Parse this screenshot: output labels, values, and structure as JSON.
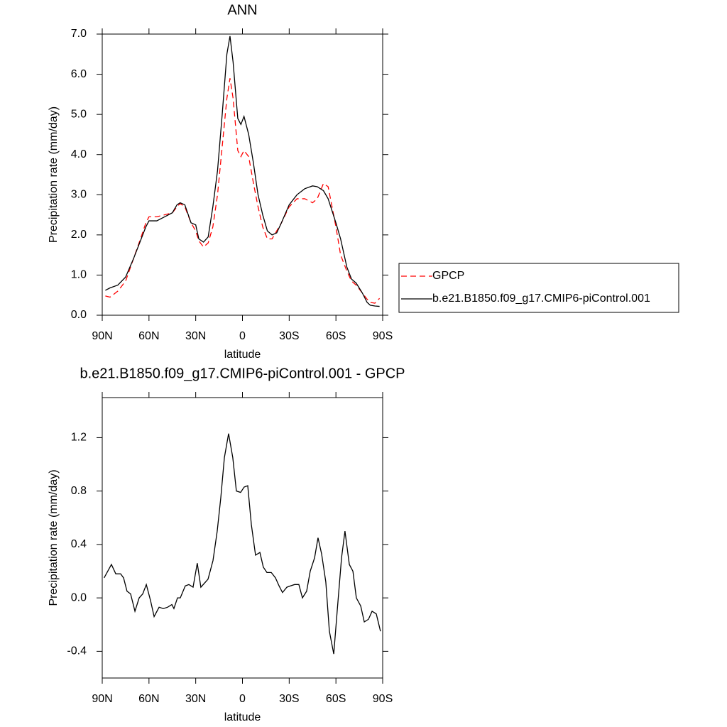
{
  "chart_data": [
    {
      "type": "line",
      "title": "ANN",
      "xlabel": "latitude",
      "ylabel": "Precipitation rate (mm/day)",
      "x": [
        88,
        85,
        80,
        75,
        70,
        65,
        62,
        60,
        55,
        50,
        45,
        42,
        40,
        37,
        33,
        30,
        28,
        25,
        22,
        19,
        16,
        13,
        10,
        8,
        6,
        3,
        1,
        -1,
        -4,
        -7,
        -10,
        -13,
        -16,
        -19,
        -22,
        -25,
        -30,
        -35,
        -40,
        -45,
        -48,
        -52,
        -55,
        -60,
        -63,
        -67,
        -70,
        -73,
        -77,
        -80,
        -82,
        -85,
        -88
      ],
      "series": [
        {
          "name": "GPCP",
          "color": "#ff0000",
          "dashed": true,
          "values": [
            0.48,
            0.45,
            0.6,
            0.85,
            1.4,
            1.95,
            2.3,
            2.45,
            2.45,
            2.5,
            2.55,
            2.7,
            2.78,
            2.7,
            2.3,
            2.1,
            1.85,
            1.7,
            1.8,
            2.2,
            3.0,
            4.2,
            5.4,
            5.9,
            5.4,
            4.1,
            3.95,
            4.1,
            3.95,
            3.3,
            2.7,
            2.2,
            1.9,
            1.9,
            2.1,
            2.3,
            2.7,
            2.9,
            2.9,
            2.8,
            2.9,
            3.28,
            3.2,
            2.2,
            1.5,
            1.1,
            0.85,
            0.75,
            0.55,
            0.4,
            0.32,
            0.3,
            0.42
          ]
        },
        {
          "name": "b.e21.B1850.f09_g17.CMIP6-piControl.001",
          "color": "#000000",
          "dashed": false,
          "values": [
            0.62,
            0.68,
            0.75,
            0.95,
            1.4,
            1.9,
            2.2,
            2.35,
            2.35,
            2.45,
            2.55,
            2.75,
            2.8,
            2.75,
            2.3,
            2.25,
            1.9,
            1.82,
            1.95,
            2.7,
            3.6,
            5.0,
            6.5,
            6.95,
            6.3,
            4.9,
            4.75,
            4.95,
            4.5,
            3.8,
            3.0,
            2.5,
            2.1,
            2.0,
            2.05,
            2.3,
            2.75,
            3.0,
            3.15,
            3.22,
            3.2,
            3.1,
            2.9,
            2.3,
            1.9,
            1.2,
            0.9,
            0.8,
            0.55,
            0.32,
            0.25,
            0.23,
            0.22
          ]
        }
      ],
      "xlim": [
        90,
        -90
      ],
      "xticks": [
        {
          "value": 90,
          "label": "90N"
        },
        {
          "value": 60,
          "label": "60N"
        },
        {
          "value": 30,
          "label": "30N"
        },
        0,
        {
          "value": -30,
          "label": "30S"
        },
        {
          "value": -60,
          "label": "60S"
        },
        {
          "value": -90,
          "label": "90S"
        }
      ],
      "ylim": [
        0,
        7
      ],
      "yticks": [
        {
          "value": 0,
          "label": "0.0"
        },
        {
          "value": 1,
          "label": "1.0"
        },
        {
          "value": 2,
          "label": "2.0"
        },
        {
          "value": 3,
          "label": "3.0"
        },
        {
          "value": 4,
          "label": "4.0"
        },
        {
          "value": 5,
          "label": "5.0"
        },
        {
          "value": 6,
          "label": "6.0"
        },
        {
          "value": 7,
          "label": "7.0"
        }
      ],
      "legend": "right"
    },
    {
      "type": "line",
      "title": "b.e21.B1850.f09_g17.CMIP6-piControl.001 - GPCP",
      "xlabel": "latitude",
      "ylabel": "Precipitation rate (mm/day)",
      "x": [
        88.8,
        84.1,
        81.3,
        78.2,
        76.3,
        74.1,
        71.8,
        69.0,
        66.3,
        64.0,
        61.7,
        59.0,
        56.7,
        53.5,
        50.8,
        48.1,
        45.3,
        44.0,
        41.7,
        39.9,
        36.7,
        34.4,
        31.7,
        29.0,
        26.7,
        22.1,
        18.9,
        16.2,
        13.9,
        11.6,
        8.9,
        6.2,
        3.9,
        1.2,
        -1.1,
        -3.4,
        -5.7,
        -8.4,
        -11.2,
        -13.4,
        -15.7,
        -18.5,
        -21.2,
        -23.5,
        -25.7,
        -28.5,
        -30.8,
        -33.5,
        -36.2,
        -38.5,
        -41.2,
        -43.5,
        -46.3,
        -48.5,
        -50.8,
        -53.5,
        -55.8,
        -58.6,
        -60.8,
        -63.6,
        -65.8,
        -68.6,
        -70.9,
        -73.1,
        -75.9,
        -78.2,
        -80.9,
        -83.2,
        -85.9,
        -88.6
      ],
      "values": [
        0.15,
        0.25,
        0.18,
        0.18,
        0.15,
        0.05,
        0.03,
        -0.1,
        0.0,
        0.03,
        0.1,
        -0.02,
        -0.14,
        -0.07,
        -0.08,
        -0.07,
        -0.05,
        -0.08,
        0.0,
        0.0,
        0.09,
        0.1,
        0.08,
        0.26,
        0.08,
        0.14,
        0.28,
        0.5,
        0.75,
        1.05,
        1.23,
        1.05,
        0.8,
        0.79,
        0.83,
        0.84,
        0.55,
        0.32,
        0.34,
        0.23,
        0.19,
        0.19,
        0.15,
        0.09,
        0.04,
        0.08,
        0.09,
        0.1,
        0.1,
        0.0,
        0.05,
        0.2,
        0.3,
        0.45,
        0.33,
        0.12,
        -0.25,
        -0.42,
        -0.1,
        0.3,
        0.5,
        0.25,
        0.2,
        0.0,
        -0.06,
        -0.18,
        -0.16,
        -0.1,
        -0.12,
        -0.25
      ],
      "color": "#000000",
      "xlim": [
        90,
        -90
      ],
      "xticks": [
        {
          "value": 90,
          "label": "90N"
        },
        {
          "value": 60,
          "label": "60N"
        },
        {
          "value": 30,
          "label": "30N"
        },
        0,
        {
          "value": -30,
          "label": "30S"
        },
        {
          "value": -60,
          "label": "60S"
        },
        {
          "value": -90,
          "label": "90S"
        }
      ],
      "ylim": [
        -0.6,
        1.5
      ],
      "yticks": [
        -0.4,
        {
          "value": 0,
          "label": "0.0"
        },
        0.4,
        0.8,
        1.2
      ]
    }
  ]
}
